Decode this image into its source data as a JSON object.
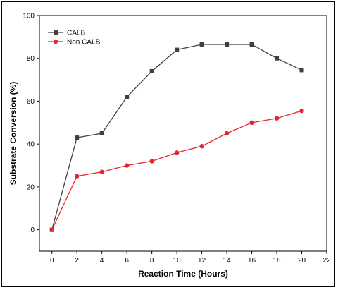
{
  "chart_data": {
    "type": "line",
    "title": "",
    "xlabel": "Reaction Time (Hours)",
    "ylabel": "Substrate Conversion (%)",
    "xlim": [
      -1,
      22
    ],
    "ylim": [
      -10,
      100
    ],
    "xticks": [
      0,
      2,
      4,
      6,
      8,
      10,
      12,
      14,
      16,
      18,
      20,
      22
    ],
    "yticks": [
      0,
      20,
      40,
      60,
      80,
      100
    ],
    "grid": false,
    "legend_position": "top-left",
    "x": [
      0,
      2,
      4,
      6,
      8,
      10,
      12,
      14,
      16,
      18,
      20
    ],
    "series": [
      {
        "name": "CALB",
        "color": "#404040",
        "marker": "square",
        "values": [
          0,
          43,
          45,
          62,
          74,
          84,
          86.5,
          86.5,
          86.5,
          80,
          74.5
        ]
      },
      {
        "name": "Non CALB",
        "color": "#e8242c",
        "marker": "circle",
        "values": [
          0,
          25,
          27,
          30,
          32,
          36,
          39,
          45,
          50,
          52,
          55.5
        ]
      }
    ]
  }
}
